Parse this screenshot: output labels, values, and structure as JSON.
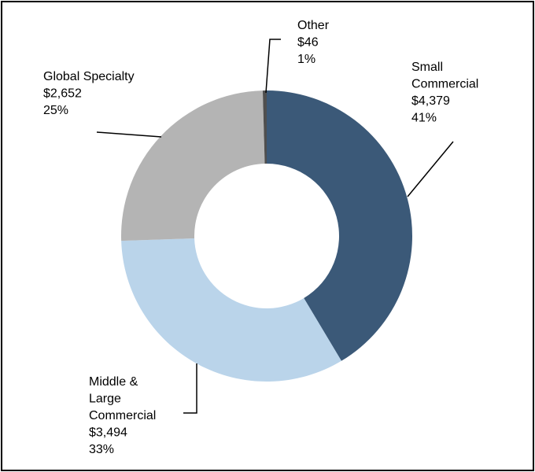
{
  "chart_data": {
    "type": "pie",
    "style": "donut",
    "legend": "none",
    "slices": [
      {
        "label_lines": [
          "Small",
          "Commercial"
        ],
        "value": 4379,
        "value_label": "$4,379",
        "percent_label": "41%",
        "color": "#3b5978"
      },
      {
        "label_lines": [
          "Middle &",
          "Large",
          "Commercial"
        ],
        "value": 3494,
        "value_label": "$3,494",
        "percent_label": "33%",
        "color": "#bad4ea"
      },
      {
        "label_lines": [
          "Global Specialty"
        ],
        "value": 2652,
        "value_label": "$2,652",
        "percent_label": "25%",
        "color": "#b4b4b4"
      },
      {
        "label_lines": [
          "Other"
        ],
        "value": 46,
        "value_label": "$46",
        "percent_label": "1%",
        "color": "#4f4f4f"
      }
    ]
  }
}
